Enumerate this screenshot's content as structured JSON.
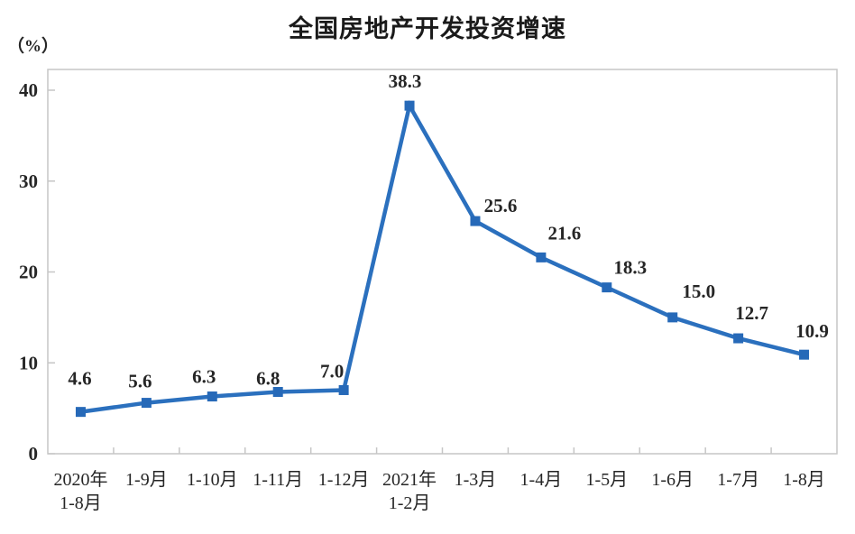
{
  "chart_data": {
    "type": "line",
    "title": "全国房地产开发投资增速",
    "unit_label": "（%）",
    "categories": [
      [
        "2020年",
        "1-8月"
      ],
      [
        "1-9月"
      ],
      [
        "1-10月"
      ],
      [
        "1-11月"
      ],
      [
        "1-12月"
      ],
      [
        "2021年",
        "1-2月"
      ],
      [
        "1-3月"
      ],
      [
        "1-4月"
      ],
      [
        "1-5月"
      ],
      [
        "1-6月"
      ],
      [
        "1-7月"
      ],
      [
        "1-8月"
      ]
    ],
    "values": [
      4.6,
      5.6,
      6.3,
      6.8,
      7.0,
      38.3,
      25.6,
      21.6,
      18.3,
      15.0,
      12.7,
      10.9
    ],
    "data_labels": [
      "4.6",
      "5.6",
      "6.3",
      "6.8",
      "7.0",
      "38.3",
      "25.6",
      "21.6",
      "18.3",
      "15.0",
      "12.7",
      "10.9"
    ],
    "ylim": [
      0,
      40
    ],
    "yticks": [
      "0",
      "10",
      "20",
      "30",
      "40"
    ],
    "grid": false,
    "legend": "none",
    "ticks": "inside, x ticks between categories",
    "line_color": "#2B70BE",
    "marker": "square",
    "marker_color": "#2669B8",
    "axis_color": "#c6c6c6",
    "label_color": "#262626",
    "title_color": "#1a1a1a",
    "background": "#ffffff"
  }
}
